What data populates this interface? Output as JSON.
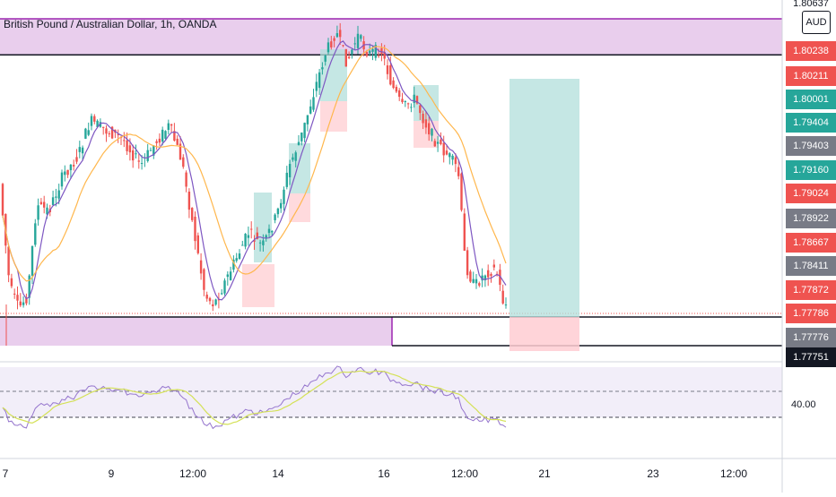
{
  "header": {
    "title": "British Pound / Australian Dollar, 1h, OANDA",
    "currency_badge": "AUD"
  },
  "colors": {
    "bull": "#26a69a",
    "bear": "#ef5350",
    "zone_purple_fill": "#e1bee7",
    "zone_purple_border": "#9c27b0",
    "target_fill": "#b2dfdb",
    "stop_fill": "#ffcdd2",
    "ma_fast": "#7e57c2",
    "ma_slow": "#ffb74d",
    "rsi_line": "#9575cd",
    "rsi_signal": "#d4e157",
    "rsi_band": "#ede7f6"
  },
  "price_axis": {
    "labels": [
      {
        "text": "1.80637",
        "style": "plain"
      },
      {
        "text": "1.80238",
        "style": "bear"
      },
      {
        "text": "1.80211",
        "style": "bear"
      },
      {
        "text": "1.80001",
        "style": "bull"
      },
      {
        "text": "1.79404",
        "style": "bull"
      },
      {
        "text": "1.79403",
        "style": "grey"
      },
      {
        "text": "1.79160",
        "style": "bull"
      },
      {
        "text": "1.79024",
        "style": "bear"
      },
      {
        "text": "1.78922",
        "style": "grey"
      },
      {
        "text": "1.78667",
        "style": "bear"
      },
      {
        "text": "1.78411",
        "style": "grey"
      },
      {
        "text": "1.77872",
        "style": "bear"
      },
      {
        "text": "1.77786",
        "style": "bear"
      },
      {
        "text": "1.77776",
        "style": "grey"
      },
      {
        "text": "1.77751",
        "style": "dark"
      }
    ],
    "rsi_label": "40.00"
  },
  "time_axis": {
    "labels": [
      "7",
      "9",
      "12:00",
      "14",
      "16",
      "12:00",
      "21",
      "23",
      "12:00"
    ]
  },
  "chart_data": [
    {
      "type": "candlestick",
      "title": "British Pound / Australian Dollar, 1h, OANDA",
      "x_ticks": [
        "7",
        "9",
        "12:00",
        "14",
        "16",
        "12:00",
        "21",
        "23",
        "12:00"
      ],
      "y_ticks": [
        "1.80637",
        "1.80238",
        "1.80211",
        "1.80001",
        "1.79404",
        "1.79403",
        "1.79160",
        "1.79024",
        "1.78922",
        "1.78667",
        "1.78411",
        "1.77872",
        "1.77786",
        "1.77776",
        "1.77751"
      ],
      "ylim": [
        1.7772,
        1.8067
      ],
      "last_price": 1.77786,
      "annotations": {
        "upper_supply_zone": [
          1.80211,
          1.80637
        ],
        "lower_demand_zone": [
          1.77751,
          1.77786
        ],
        "long_position": {
          "entry": 1.77786,
          "target": 1.79976,
          "stop": 1.77751
        }
      },
      "moving_averages": [
        "fast MA",
        "slow MA"
      ],
      "grid": false
    },
    {
      "type": "line",
      "label": "RSI",
      "reference_levels": [
        70,
        40
      ],
      "axis_label": "40.00",
      "grid": false
    }
  ]
}
